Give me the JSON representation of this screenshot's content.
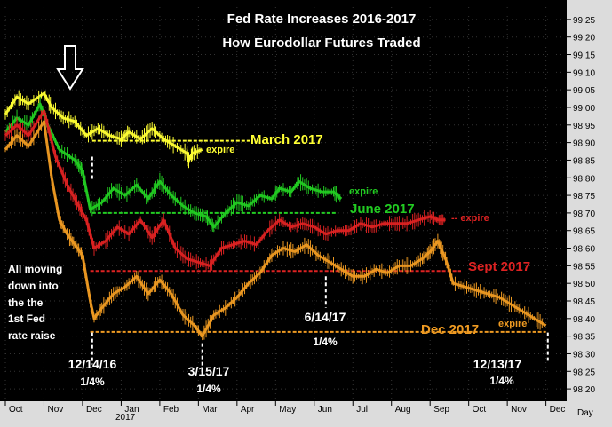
{
  "chart_data": {
    "type": "line",
    "title": "Fed Rate Increases 2016-2017",
    "subtitle": "How Eurodollar  Futures Traded",
    "y_ticks": [
      "99.25",
      "99.20",
      "99.15",
      "99.10",
      "99.05",
      "99.00",
      "98.95",
      "98.90",
      "98.85",
      "98.80",
      "98.75",
      "98.70",
      "98.65",
      "98.60",
      "98.55",
      "98.50",
      "98.45",
      "98.40",
      "98.35",
      "98.30",
      "98.25",
      "98.20"
    ],
    "ylim": [
      98.17,
      99.285
    ],
    "x_labels": [
      "Oct",
      "Nov",
      "Dec",
      "Jan",
      "Feb",
      "Mar",
      "Apr",
      "May",
      "Jun",
      "Jul",
      "Aug",
      "Sep",
      "Oct",
      "Nov",
      "Dec"
    ],
    "year_label": "2017",
    "period_label": "Day",
    "series": [
      {
        "name": "March 2017",
        "color": "#ffff33",
        "level_label": "March 2017",
        "expire_label": "expire",
        "level": 98.905,
        "points": [
          [
            0,
            98.98
          ],
          [
            0.3,
            99.03
          ],
          [
            0.6,
            99.01
          ],
          [
            1.0,
            99.04
          ],
          [
            1.2,
            99.0
          ],
          [
            1.5,
            98.97
          ],
          [
            1.8,
            98.96
          ],
          [
            2.1,
            98.92
          ],
          [
            2.4,
            98.94
          ],
          [
            2.7,
            98.92
          ],
          [
            3.0,
            98.91
          ],
          [
            3.2,
            98.93
          ],
          [
            3.5,
            98.91
          ],
          [
            3.8,
            98.94
          ],
          [
            4.1,
            98.91
          ],
          [
            4.4,
            98.89
          ],
          [
            4.7,
            98.87
          ],
          [
            4.75,
            98.85
          ],
          [
            4.85,
            98.87
          ],
          [
            5.1,
            98.88
          ]
        ]
      },
      {
        "name": "June 2017",
        "color": "#22cc22",
        "level_label": "June 2017",
        "expire_label": "expire",
        "level": 98.7,
        "points": [
          [
            0,
            98.93
          ],
          [
            0.3,
            98.97
          ],
          [
            0.6,
            98.95
          ],
          [
            0.9,
            99.01
          ],
          [
            1.1,
            98.95
          ],
          [
            1.4,
            98.88
          ],
          [
            1.8,
            98.85
          ],
          [
            2.0,
            98.82
          ],
          [
            2.2,
            98.71
          ],
          [
            2.5,
            98.73
          ],
          [
            2.8,
            98.77
          ],
          [
            3.1,
            98.75
          ],
          [
            3.4,
            98.78
          ],
          [
            3.7,
            98.74
          ],
          [
            4.0,
            98.79
          ],
          [
            4.3,
            98.75
          ],
          [
            4.6,
            98.72
          ],
          [
            4.9,
            98.7
          ],
          [
            5.2,
            98.69
          ],
          [
            5.4,
            98.66
          ],
          [
            5.7,
            98.7
          ],
          [
            6.0,
            98.73
          ],
          [
            6.3,
            98.72
          ],
          [
            6.6,
            98.75
          ],
          [
            6.9,
            98.74
          ],
          [
            7.1,
            98.77
          ],
          [
            7.4,
            98.76
          ],
          [
            7.6,
            98.79
          ],
          [
            7.9,
            98.77
          ],
          [
            8.2,
            98.76
          ],
          [
            8.5,
            98.76
          ],
          [
            8.7,
            98.74
          ]
        ]
      },
      {
        "name": "Sept 2017",
        "color": "#dd2222",
        "level_label": "Sept 2017",
        "expire_label": "-- expire",
        "level": 98.535,
        "points": [
          [
            0,
            98.92
          ],
          [
            0.3,
            98.95
          ],
          [
            0.6,
            98.92
          ],
          [
            1.0,
            98.99
          ],
          [
            1.3,
            98.86
          ],
          [
            1.6,
            98.78
          ],
          [
            1.9,
            98.72
          ],
          [
            2.1,
            98.68
          ],
          [
            2.3,
            98.6
          ],
          [
            2.6,
            98.62
          ],
          [
            2.9,
            98.66
          ],
          [
            3.2,
            98.64
          ],
          [
            3.5,
            98.68
          ],
          [
            3.8,
            98.63
          ],
          [
            4.1,
            98.68
          ],
          [
            4.4,
            98.6
          ],
          [
            4.7,
            98.57
          ],
          [
            5.0,
            98.56
          ],
          [
            5.3,
            98.55
          ],
          [
            5.6,
            98.6
          ],
          [
            5.9,
            98.61
          ],
          [
            6.2,
            98.62
          ],
          [
            6.5,
            98.61
          ],
          [
            6.8,
            98.65
          ],
          [
            7.1,
            98.68
          ],
          [
            7.4,
            98.66
          ],
          [
            7.7,
            98.67
          ],
          [
            8.0,
            98.66
          ],
          [
            8.3,
            98.64
          ],
          [
            8.6,
            98.65
          ],
          [
            8.9,
            98.65
          ],
          [
            9.2,
            98.67
          ],
          [
            9.5,
            98.66
          ],
          [
            9.8,
            98.67
          ],
          [
            10.1,
            98.67
          ],
          [
            10.4,
            98.67
          ],
          [
            10.7,
            98.68
          ],
          [
            11.0,
            98.69
          ],
          [
            11.2,
            98.68
          ],
          [
            11.4,
            98.68
          ]
        ]
      },
      {
        "name": "Dec 2017",
        "color": "#ee9a22",
        "level_label": "Dec 2017",
        "expire_label": "expire",
        "level": 98.362,
        "points": [
          [
            0,
            98.88
          ],
          [
            0.3,
            98.92
          ],
          [
            0.6,
            98.89
          ],
          [
            1.0,
            98.96
          ],
          [
            1.2,
            98.8
          ],
          [
            1.4,
            98.68
          ],
          [
            1.6,
            98.64
          ],
          [
            1.8,
            98.61
          ],
          [
            2.0,
            98.58
          ],
          [
            2.2,
            98.45
          ],
          [
            2.3,
            98.4
          ],
          [
            2.5,
            98.43
          ],
          [
            2.8,
            98.47
          ],
          [
            3.1,
            98.49
          ],
          [
            3.4,
            98.52
          ],
          [
            3.7,
            98.47
          ],
          [
            4.0,
            98.51
          ],
          [
            4.3,
            98.47
          ],
          [
            4.6,
            98.41
          ],
          [
            4.9,
            98.38
          ],
          [
            5.1,
            98.35
          ],
          [
            5.4,
            98.41
          ],
          [
            5.7,
            98.43
          ],
          [
            6.0,
            98.46
          ],
          [
            6.3,
            98.5
          ],
          [
            6.6,
            98.53
          ],
          [
            6.9,
            98.58
          ],
          [
            7.2,
            98.6
          ],
          [
            7.5,
            98.59
          ],
          [
            7.8,
            98.61
          ],
          [
            8.1,
            98.58
          ],
          [
            8.4,
            98.56
          ],
          [
            8.7,
            98.54
          ],
          [
            9.0,
            98.52
          ],
          [
            9.3,
            98.52
          ],
          [
            9.6,
            98.54
          ],
          [
            9.9,
            98.53
          ],
          [
            10.2,
            98.55
          ],
          [
            10.5,
            98.55
          ],
          [
            10.8,
            98.57
          ],
          [
            11.0,
            98.59
          ],
          [
            11.2,
            98.62
          ],
          [
            11.4,
            98.57
          ],
          [
            11.6,
            98.5
          ],
          [
            11.9,
            98.49
          ],
          [
            12.2,
            98.48
          ],
          [
            12.5,
            98.47
          ],
          [
            12.8,
            98.46
          ],
          [
            13.1,
            98.44
          ],
          [
            13.4,
            98.42
          ],
          [
            13.7,
            98.4
          ],
          [
            14.0,
            98.38
          ]
        ]
      }
    ],
    "annotations": {
      "note": [
        "All moving",
        "down into",
        "the the",
        "1st Fed",
        "rate raise"
      ],
      "hikes": [
        {
          "date": "12/14/16",
          "size": "1/4%",
          "x": 2.25
        },
        {
          "date": "3/15/17",
          "size": "1/4%",
          "x": 5.1
        },
        {
          "date": "6/14/17",
          "size": "1/4%",
          "x": 8.3
        },
        {
          "date": "12/13/17",
          "size": "1/4%",
          "x": 14.05
        }
      ]
    }
  }
}
